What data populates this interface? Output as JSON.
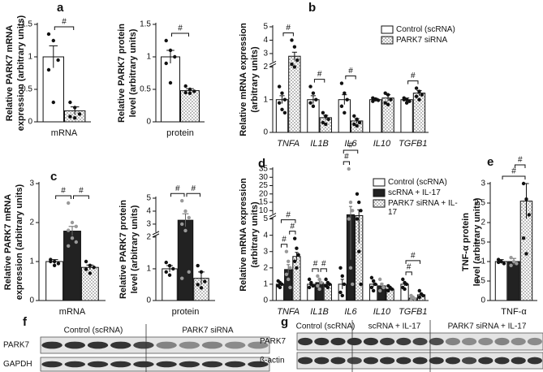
{
  "chart_data": [
    {
      "type": "bar",
      "panel": "a",
      "categories": [
        "mRNA"
      ],
      "ylabel": [
        "Relative PARK7 mRNA",
        "expression (arbitrary units)"
      ],
      "ylim": [
        0,
        1.5
      ],
      "yticks": [
        0,
        0.5,
        1,
        1.5
      ],
      "series": [
        {
          "color": "#ffffff",
          "values": [
            1.0
          ],
          "errors": [
            0.17
          ],
          "points": [
            [
              1.35,
              1.25,
              0.95,
              0.8,
              0.3
            ]
          ]
        },
        {
          "color": "#bdbdbd",
          "pattern": "checker",
          "values": [
            0.17
          ],
          "errors": [
            0.06
          ],
          "points": [
            [
              0.3,
              0.22,
              0.12,
              0.08,
              0.06
            ]
          ]
        }
      ],
      "annotations": [
        {
          "label": "#",
          "category": 0,
          "series": [
            0,
            1
          ]
        }
      ]
    },
    {
      "type": "bar",
      "categories": [
        "protein"
      ],
      "ylabel": [
        "Relative PARK7 protein",
        "level (arbitrary units)"
      ],
      "ylim": [
        0,
        1.5
      ],
      "yticks": [
        0,
        0.5,
        1,
        1.5
      ],
      "series": [
        {
          "color": "#ffffff",
          "values": [
            1.0
          ],
          "errors": [
            0.1
          ],
          "points": [
            [
              1.25,
              1.1,
              1.0,
              0.9,
              0.6
            ]
          ]
        },
        {
          "color": "#bdbdbd",
          "pattern": "checker",
          "values": [
            0.48
          ],
          "errors": [
            0.03
          ],
          "points": [
            [
              0.55,
              0.5,
              0.47,
              0.45,
              0.44
            ]
          ]
        }
      ],
      "annotations": [
        {
          "label": "#",
          "category": 0,
          "series": [
            0,
            1
          ]
        }
      ]
    },
    {
      "type": "bar",
      "panel": "b",
      "categories": [
        "TNFA",
        "IL1B",
        "IL6",
        "IL10",
        "TGFB1"
      ],
      "category_italic": true,
      "ylabel": [
        "Relative mRNA expression",
        "(arbitrary units)"
      ],
      "ylim": [
        0,
        5
      ],
      "ybreak": 2,
      "yticks": [
        0,
        1,
        2,
        3,
        4,
        5
      ],
      "series": [
        {
          "name": "Control (scRNA)",
          "color": "#ffffff",
          "values": [
            1.0,
            1.0,
            1.0,
            1.0,
            1.0
          ],
          "errors": [
            0.12,
            0.12,
            0.15,
            0.04,
            0.05
          ],
          "points": [
            [
              1.4,
              1.2,
              1.0,
              0.9,
              0.7,
              0.6
            ],
            [
              1.4,
              1.2,
              1.0,
              0.9,
              0.8
            ],
            [
              1.5,
              1.2,
              1.0,
              0.8,
              0.6
            ],
            [
              1.05,
              1.0,
              0.98,
              0.95,
              1.02
            ],
            [
              1.05,
              1.0,
              0.95,
              1.0,
              0.9
            ]
          ]
        },
        {
          "name": "PARK7 siRNA",
          "color": "#bdbdbd",
          "pattern": "checker",
          "values": [
            2.8,
            0.45,
            0.35,
            1.05,
            1.2
          ],
          "errors": [
            0.3,
            0.07,
            0.07,
            0.1,
            0.08
          ],
          "points": [
            [
              4.0,
              3.5,
              2.5,
              2.2,
              2.0
            ],
            [
              0.6,
              0.5,
              0.4,
              0.3,
              0.25
            ],
            [
              0.5,
              0.4,
              0.3,
              0.25,
              0.2
            ],
            [
              1.2,
              1.15,
              1.0,
              0.9,
              0.85
            ],
            [
              1.35,
              1.25,
              1.15,
              1.1,
              1.0
            ]
          ]
        }
      ],
      "annotations": [
        {
          "label": "#",
          "category": 0,
          "series": [
            0,
            1
          ]
        },
        {
          "label": "#",
          "category": 1,
          "series": [
            0,
            1
          ]
        },
        {
          "label": "#",
          "category": 2,
          "series": [
            0,
            1
          ]
        },
        {
          "label": "#",
          "category": 4,
          "series": [
            0,
            1
          ]
        }
      ]
    },
    {
      "type": "bar",
      "panel": "c",
      "categories": [
        "mRNA"
      ],
      "ylabel": [
        "Relative PARK7 mRNA",
        "expression (arbitrary units)"
      ],
      "ylim": [
        0,
        3
      ],
      "yticks": [
        0,
        1,
        2,
        3
      ],
      "series": [
        {
          "color": "#ffffff",
          "values": [
            1.0
          ],
          "errors": [
            0.05
          ],
          "points": [
            [
              1.05,
              1.0,
              0.95,
              1.0,
              0.9
            ]
          ]
        },
        {
          "color": "#222222",
          "values": [
            1.78
          ],
          "errors": [
            0.12
          ],
          "points": [
            [
              2.5,
              2.0,
              1.9,
              1.8,
              1.6,
              1.5,
              1.4
            ]
          ]
        },
        {
          "color": "#bdbdbd",
          "pattern": "checker",
          "values": [
            0.85
          ],
          "errors": [
            0.06
          ],
          "points": [
            [
              1.0,
              0.9,
              0.85,
              0.8,
              0.7
            ]
          ]
        }
      ],
      "annotations": [
        {
          "label": "#",
          "category": 0,
          "series": [
            0,
            1
          ]
        },
        {
          "label": "#",
          "category": 0,
          "series": [
            1,
            2
          ]
        }
      ]
    },
    {
      "type": "bar",
      "categories": [
        "protein"
      ],
      "ylabel": [
        "Relative PARK7 protein",
        "level (arbitrary units)"
      ],
      "ylim": [
        0,
        5
      ],
      "ybreak": 2,
      "yticks": [
        0,
        1,
        2,
        3,
        4,
        5
      ],
      "series": [
        {
          "color": "#ffffff",
          "values": [
            1.0
          ],
          "errors": [
            0.1
          ],
          "points": [
            [
              1.2,
              1.1,
              1.0,
              0.9,
              0.8
            ]
          ]
        },
        {
          "color": "#222222",
          "values": [
            3.3
          ],
          "errors": [
            0.5
          ],
          "points": [
            [
              4.8,
              4.0,
              3.5,
              3.0,
              2.5,
              0.9,
              0.7
            ]
          ]
        },
        {
          "color": "#bdbdbd",
          "pattern": "checker",
          "values": [
            0.7
          ],
          "errors": [
            0.2
          ],
          "points": [
            [
              1.1,
              0.9,
              0.6,
              0.5,
              0.4
            ]
          ]
        }
      ],
      "annotations": [
        {
          "label": "#",
          "category": 0,
          "series": [
            0,
            1
          ]
        },
        {
          "label": "#",
          "category": 0,
          "series": [
            1,
            2
          ]
        }
      ]
    },
    {
      "type": "bar",
      "panel": "d",
      "categories": [
        "TNFA",
        "IL1B",
        "IL6",
        "IL10",
        "TGFB1"
      ],
      "category_italic": true,
      "ylabel": [
        "Relative mRNA expression",
        "(arbitrary units)"
      ],
      "ylim": [
        0,
        35
      ],
      "ybreak": 5,
      "yticks": [
        0,
        1,
        2,
        3,
        4,
        5,
        10,
        15,
        20,
        25,
        30,
        35
      ],
      "series": [
        {
          "name": "Control (scRNA)",
          "color": "#ffffff",
          "values": [
            1.0,
            1.0,
            1.0,
            1.0,
            1.0
          ],
          "errors": [
            0.08,
            0.1,
            0.3,
            0.15,
            0.1
          ],
          "points": [
            [
              1.2,
              1.1,
              1.0,
              0.9,
              0.8
            ],
            [
              1.3,
              1.0,
              0.9,
              0.8,
              1.1
            ],
            [
              2.0,
              1.5,
              1.0,
              0.5,
              0.3
            ],
            [
              1.4,
              1.2,
              1.0,
              0.8,
              0.6
            ],
            [
              1.3,
              1.1,
              1.0,
              0.8,
              0.7
            ]
          ]
        },
        {
          "name": "scRNA + IL-17",
          "color": "#222222",
          "values": [
            1.9,
            1.1,
            7.5,
            0.9,
            0.15
          ],
          "errors": [
            0.3,
            0.15,
            5,
            0.15,
            0.05
          ],
          "points": [
            [
              3.0,
              2.4,
              2.0,
              1.6,
              1.3,
              0.8
            ],
            [
              1.5,
              1.3,
              1.1,
              0.9,
              0.7
            ],
            [
              35,
              15,
              10,
              5,
              2,
              1
            ],
            [
              1.3,
              1.0,
              0.8,
              0.6
            ],
            [
              0.3,
              0.2,
              0.1,
              0.05
            ]
          ]
        },
        {
          "name": "PARK7 siRNA + IL-17",
          "color": "#bdbdbd",
          "pattern": "checker",
          "values": [
            2.7,
            1.0,
            7.0,
            0.7,
            0.35
          ],
          "errors": [
            0.25,
            0.1,
            3.5,
            0.05,
            0.08
          ],
          "points": [
            [
              3.8,
              3.2,
              2.8,
              2.4,
              2.0
            ],
            [
              1.3,
              1.1,
              1.0,
              0.9,
              0.8
            ],
            [
              20,
              15,
              10,
              5,
              3,
              1
            ],
            [
              0.9,
              0.8,
              0.7,
              0.6
            ],
            [
              0.6,
              0.4,
              0.3,
              0.2
            ]
          ]
        }
      ],
      "annotations": [
        {
          "label": "#",
          "category": 0,
          "series": [
            0,
            1
          ]
        },
        {
          "label": "#",
          "category": 0,
          "series": [
            1,
            2
          ]
        },
        {
          "label": "#",
          "category": 0,
          "series": [
            0,
            2
          ]
        },
        {
          "label": "#",
          "category": 1,
          "series": [
            0,
            1
          ]
        },
        {
          "label": "#",
          "category": 1,
          "series": [
            1,
            2
          ]
        },
        {
          "label": "#",
          "category": 2,
          "series": [
            0,
            1
          ]
        },
        {
          "label": "#",
          "category": 2,
          "series": [
            0,
            2
          ]
        },
        {
          "label": "#",
          "category": 4,
          "series": [
            0,
            1
          ]
        },
        {
          "label": "#",
          "category": 4,
          "series": [
            0,
            2
          ]
        }
      ]
    },
    {
      "type": "bar",
      "panel": "e",
      "categories": [
        "TNF-α"
      ],
      "ylabel": [
        "TNF-α protein",
        "level (arbitrary units)"
      ],
      "ylim": [
        0,
        3
      ],
      "yticks": [
        0,
        0.5,
        1,
        1.5,
        2,
        2.5,
        3
      ],
      "series": [
        {
          "color": "#ffffff",
          "values": [
            1.0
          ],
          "errors": [
            0.05
          ],
          "points": [
            [
              1.05,
              1.0,
              0.95,
              0.98
            ]
          ]
        },
        {
          "color": "#222222",
          "values": [
            1.0
          ],
          "errors": [
            0.08
          ],
          "points": [
            [
              1.1,
              1.0,
              0.95,
              0.9
            ]
          ]
        },
        {
          "color": "#bdbdbd",
          "pattern": "checker",
          "values": [
            2.55
          ],
          "errors": [
            0.45
          ],
          "points": [
            [
              3.0,
              2.6,
              2.2,
              1.6,
              1.2
            ]
          ]
        }
      ],
      "annotations": [
        {
          "label": "#",
          "category": 0,
          "series": [
            0,
            2
          ]
        },
        {
          "label": "#",
          "category": 0,
          "series": [
            1,
            2
          ]
        }
      ]
    }
  ],
  "blots": [
    {
      "panel": "f",
      "groups": [
        "Control (scRNA)",
        "PARK7 siRNA"
      ],
      "rows": [
        "PARK7",
        "GAPDH"
      ]
    },
    {
      "panel": "g",
      "groups": [
        "Control (scRNA)",
        "scRNA + IL-17",
        "PARK7 siRNA + IL-17"
      ],
      "rows": [
        "PARK7",
        "ß-actin"
      ]
    }
  ]
}
